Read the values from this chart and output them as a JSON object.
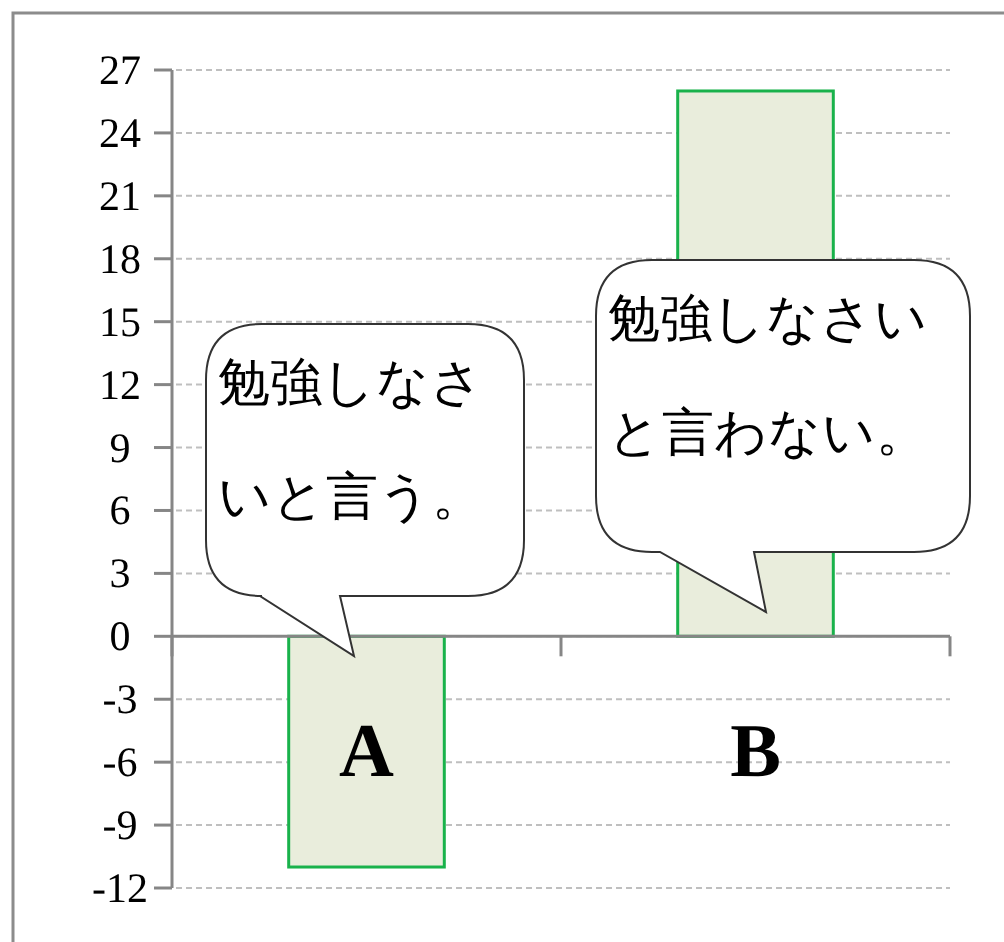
{
  "chart_data": {
    "type": "bar",
    "categories": [
      "A",
      "B"
    ],
    "values": [
      -11,
      26
    ],
    "color": "#e9eddc",
    "ylim": [
      -12,
      27
    ],
    "yticks": [
      -12,
      -9,
      -6,
      -3,
      0,
      3,
      6,
      9,
      12,
      15,
      18,
      21,
      24,
      27
    ],
    "grid": "y",
    "annotations": [
      "勉強しなさいと言う。",
      "勉強しなさいと言わない。"
    ]
  }
}
